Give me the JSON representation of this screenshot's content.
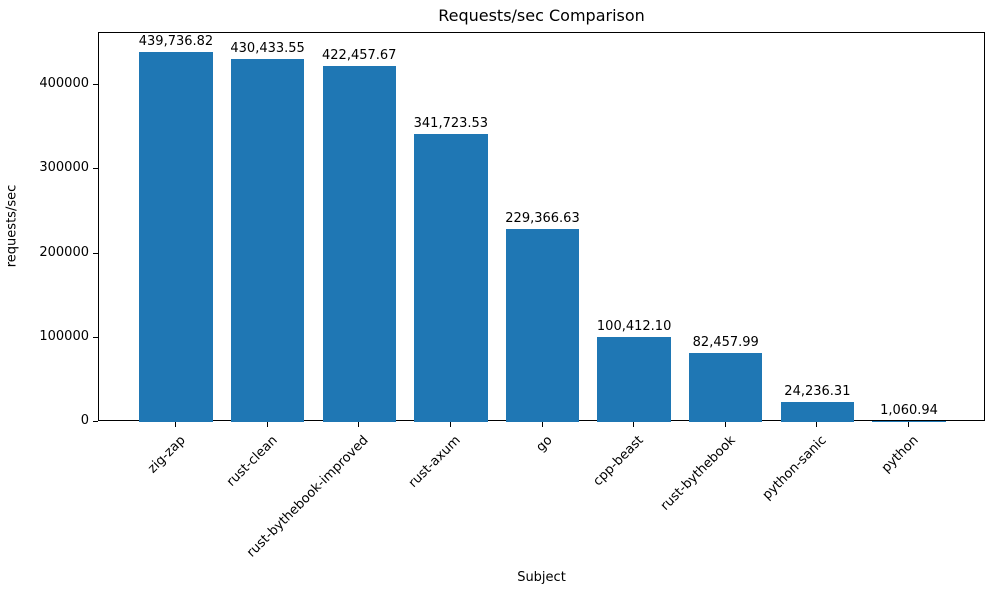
{
  "chart_data": {
    "type": "bar",
    "title": "Requests/sec Comparison",
    "xlabel": "Subject",
    "ylabel": "requests/sec",
    "categories": [
      "zig-zap",
      "rust-clean",
      "rust-bythebook-improved",
      "rust-axum",
      "go",
      "cpp-beast",
      "rust-bythebook",
      "python-sanic",
      "python"
    ],
    "values": [
      439736.82,
      430433.55,
      422457.67,
      341723.53,
      229366.63,
      100412.1,
      82457.99,
      24236.31,
      1060.94
    ],
    "value_labels": [
      "439,736.82",
      "430,433.55",
      "422,457.67",
      "341,723.53",
      "229,366.63",
      "100,412.10",
      "82,457.99",
      "24,236.31",
      "1,060.94"
    ],
    "yticks": [
      0,
      100000,
      200000,
      300000,
      400000
    ],
    "ytick_labels": [
      "0",
      "100000",
      "200000",
      "300000",
      "400000"
    ],
    "ylim": [
      0,
      461723.66
    ],
    "bar_color": "#1f77b4",
    "grid": false,
    "legend": "none"
  }
}
